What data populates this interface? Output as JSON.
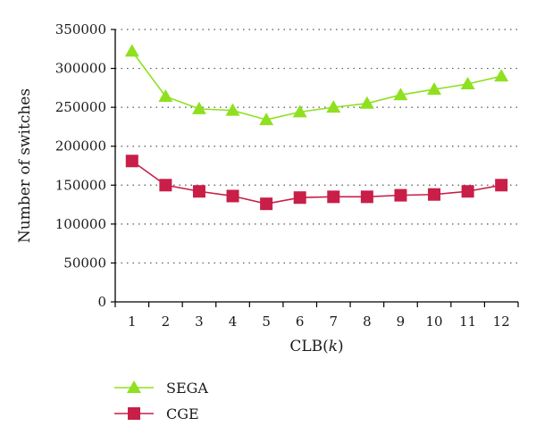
{
  "chart_data": {
    "type": "line",
    "xlabel": "CLB(k)",
    "xlabel_prefix": "CLB(",
    "xlabel_var": "k",
    "xlabel_suffix": ")",
    "ylabel": "Number of switches",
    "x": [
      1,
      2,
      3,
      4,
      5,
      6,
      7,
      8,
      9,
      10,
      11,
      12
    ],
    "x_tick_labels": [
      "1",
      "2",
      "3",
      "4",
      "5",
      "6",
      "7",
      "8",
      "9",
      "10",
      "11",
      "12"
    ],
    "ylim": [
      0,
      350000
    ],
    "y_ticks": [
      0,
      50000,
      100000,
      150000,
      200000,
      250000,
      300000,
      350000
    ],
    "y_tick_labels": [
      "0",
      "50000",
      "100000",
      "150000",
      "200000",
      "250000",
      "300000",
      "350000"
    ],
    "grid": "horizontal-dotted",
    "legend_position": "bottom-left",
    "series": [
      {
        "name": "SEGA",
        "marker": "triangle",
        "color": "#8fe01f",
        "values": [
          322000,
          264000,
          248000,
          246000,
          234000,
          244000,
          250000,
          255000,
          266000,
          273000,
          280000,
          290000
        ]
      },
      {
        "name": "CGE",
        "marker": "square",
        "color": "#c81e48",
        "values": [
          181000,
          150000,
          142000,
          136000,
          126000,
          134000,
          135000,
          135000,
          137000,
          138000,
          142000,
          150000
        ]
      }
    ]
  }
}
